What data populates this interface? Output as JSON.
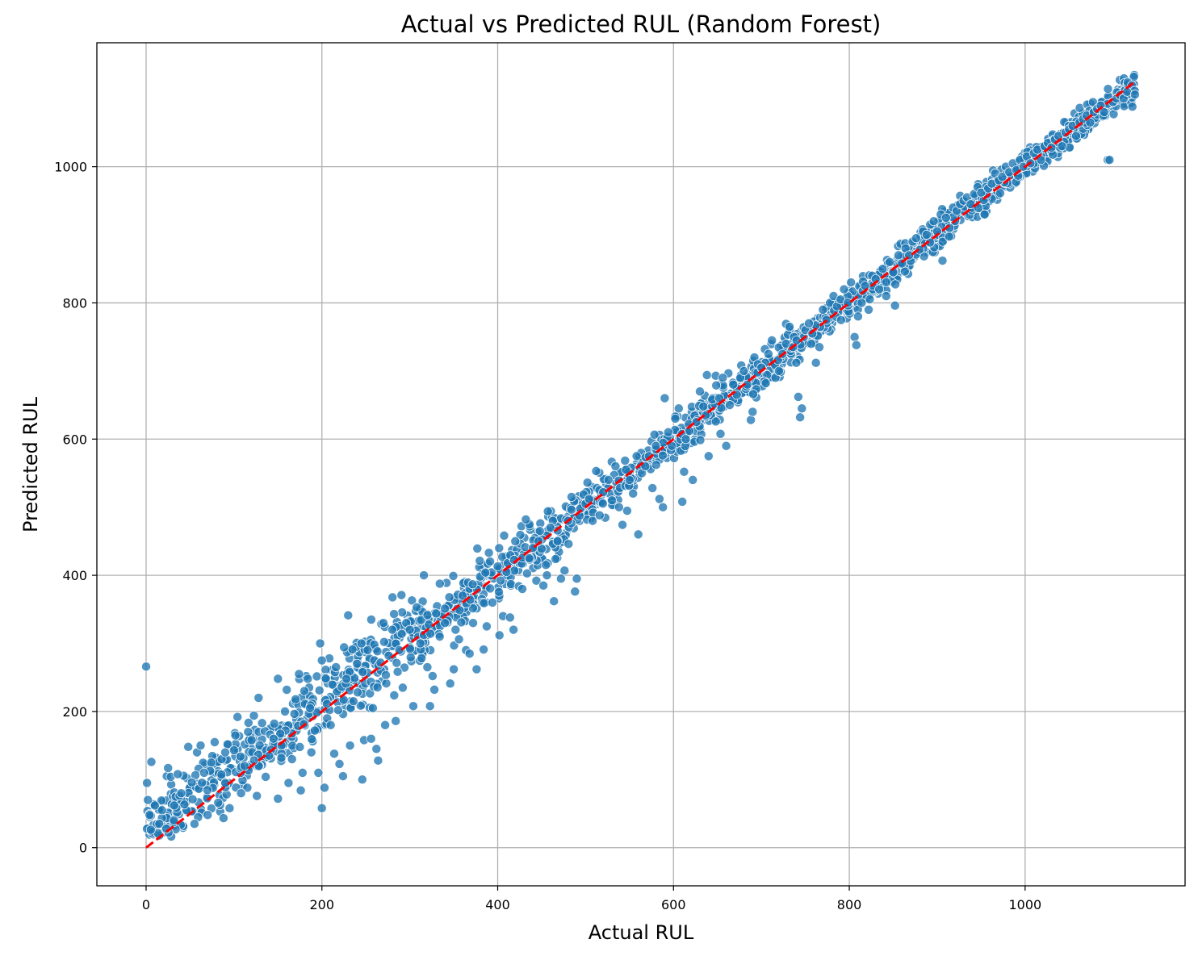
{
  "chart_data": {
    "type": "scatter",
    "title": "Actual vs Predicted RUL (Random Forest)",
    "xlabel": "Actual RUL",
    "ylabel": "Predicted RUL",
    "xlim": [
      -56,
      1182
    ],
    "ylim": [
      -56,
      1182
    ],
    "xticks": [
      0,
      200,
      400,
      600,
      800,
      1000
    ],
    "yticks": [
      0,
      200,
      400,
      600,
      800,
      1000
    ],
    "xtick_labels": [
      "0",
      "200",
      "400",
      "600",
      "800",
      "1000"
    ],
    "ytick_labels": [
      "0",
      "200",
      "400",
      "600",
      "800",
      "1000"
    ],
    "grid": true,
    "point_color": "#1f77b4",
    "point_edge_color": "#ffffff",
    "reference_line": {
      "from": [
        0,
        0
      ],
      "to": [
        1125,
        1125
      ],
      "color": "#ff0000",
      "style": "dashed"
    },
    "points_count": 2000,
    "points": [
      [
        0,
        266
      ],
      [
        1,
        95
      ],
      [
        2,
        70
      ],
      [
        4,
        48
      ],
      [
        6,
        126
      ],
      [
        10,
        62
      ],
      [
        15,
        35
      ],
      [
        18,
        55
      ],
      [
        23,
        28
      ],
      [
        25,
        117
      ],
      [
        28,
        104
      ],
      [
        32,
        62
      ],
      [
        36,
        108
      ],
      [
        40,
        80
      ],
      [
        48,
        148
      ],
      [
        52,
        96
      ],
      [
        55,
        35
      ],
      [
        58,
        140
      ],
      [
        62,
        150
      ],
      [
        66,
        110
      ],
      [
        70,
        48
      ],
      [
        74,
        125
      ],
      [
        78,
        155
      ],
      [
        82,
        66
      ],
      [
        86,
        130
      ],
      [
        90,
        140
      ],
      [
        95,
        58
      ],
      [
        100,
        143
      ],
      [
        104,
        192
      ],
      [
        108,
        80
      ],
      [
        112,
        120
      ],
      [
        116,
        170
      ],
      [
        120,
        158
      ],
      [
        126,
        76
      ],
      [
        128,
        220
      ],
      [
        132,
        183
      ],
      [
        136,
        104
      ],
      [
        140,
        135
      ],
      [
        145,
        160
      ],
      [
        150,
        248
      ],
      [
        150,
        72
      ],
      [
        154,
        150
      ],
      [
        158,
        200
      ],
      [
        162,
        95
      ],
      [
        166,
        130
      ],
      [
        170,
        218
      ],
      [
        174,
        255
      ],
      [
        176,
        84
      ],
      [
        178,
        110
      ],
      [
        180,
        230
      ],
      [
        184,
        248
      ],
      [
        188,
        140
      ],
      [
        192,
        172
      ],
      [
        196,
        110
      ],
      [
        198,
        300
      ],
      [
        200,
        275
      ],
      [
        200,
        58
      ],
      [
        203,
        88
      ],
      [
        206,
        190
      ],
      [
        210,
        180
      ],
      [
        214,
        138
      ],
      [
        216,
        265
      ],
      [
        220,
        123
      ],
      [
        224,
        105
      ],
      [
        228,
        248
      ],
      [
        232,
        150
      ],
      [
        236,
        215
      ],
      [
        240,
        270
      ],
      [
        245,
        300
      ],
      [
        246,
        100
      ],
      [
        248,
        158
      ],
      [
        252,
        290
      ],
      [
        256,
        160
      ],
      [
        258,
        205
      ],
      [
        262,
        145
      ],
      [
        264,
        128
      ],
      [
        270,
        330
      ],
      [
        272,
        180
      ],
      [
        276,
        282
      ],
      [
        280,
        320
      ],
      [
        284,
        186
      ],
      [
        288,
        290
      ],
      [
        292,
        235
      ],
      [
        296,
        330
      ],
      [
        300,
        320
      ],
      [
        304,
        208
      ],
      [
        308,
        353
      ],
      [
        312,
        300
      ],
      [
        316,
        400
      ],
      [
        320,
        265
      ],
      [
        323,
        208
      ],
      [
        326,
        252
      ],
      [
        328,
        232
      ],
      [
        330,
        344
      ],
      [
        334,
        310
      ],
      [
        340,
        330
      ],
      [
        346,
        241
      ],
      [
        350,
        262
      ],
      [
        352,
        320
      ],
      [
        356,
        306
      ],
      [
        360,
        370
      ],
      [
        364,
        290
      ],
      [
        368,
        285
      ],
      [
        372,
        330
      ],
      [
        376,
        262
      ],
      [
        380,
        398
      ],
      [
        384,
        291
      ],
      [
        386,
        404
      ],
      [
        390,
        433
      ],
      [
        394,
        360
      ],
      [
        400,
        413
      ],
      [
        402,
        312
      ],
      [
        406,
        340
      ],
      [
        410,
        405
      ],
      [
        414,
        338
      ],
      [
        418,
        320
      ],
      [
        420,
        450
      ],
      [
        424,
        384
      ],
      [
        428,
        380
      ],
      [
        432,
        482
      ],
      [
        436,
        425
      ],
      [
        440,
        440
      ],
      [
        444,
        392
      ],
      [
        448,
        465
      ],
      [
        452,
        385
      ],
      [
        456,
        400
      ],
      [
        460,
        470
      ],
      [
        464,
        362
      ],
      [
        468,
        450
      ],
      [
        472,
        395
      ],
      [
        476,
        407
      ],
      [
        480,
        480
      ],
      [
        484,
        515
      ],
      [
        488,
        376
      ],
      [
        490,
        395
      ],
      [
        494,
        498
      ],
      [
        500,
        505
      ],
      [
        504,
        512
      ],
      [
        508,
        480
      ],
      [
        512,
        553
      ],
      [
        516,
        488
      ],
      [
        520,
        522
      ],
      [
        526,
        540
      ],
      [
        530,
        510
      ],
      [
        534,
        560
      ],
      [
        538,
        500
      ],
      [
        542,
        474
      ],
      [
        546,
        555
      ],
      [
        550,
        540
      ],
      [
        554,
        520
      ],
      [
        558,
        575
      ],
      [
        560,
        460
      ],
      [
        564,
        550
      ],
      [
        568,
        560
      ],
      [
        572,
        575
      ],
      [
        576,
        528
      ],
      [
        580,
        590
      ],
      [
        584,
        512
      ],
      [
        588,
        500
      ],
      [
        590,
        660
      ],
      [
        594,
        610
      ],
      [
        598,
        590
      ],
      [
        602,
        630
      ],
      [
        606,
        645
      ],
      [
        610,
        508
      ],
      [
        612,
        552
      ],
      [
        614,
        600
      ],
      [
        618,
        612
      ],
      [
        622,
        540
      ],
      [
        626,
        625
      ],
      [
        630,
        670
      ],
      [
        634,
        648
      ],
      [
        638,
        694
      ],
      [
        640,
        575
      ],
      [
        644,
        658
      ],
      [
        648,
        693
      ],
      [
        652,
        660
      ],
      [
        656,
        690
      ],
      [
        660,
        590
      ],
      [
        664,
        650
      ],
      [
        668,
        680
      ],
      [
        672,
        665
      ],
      [
        676,
        690
      ],
      [
        680,
        700
      ],
      [
        684,
        680
      ],
      [
        688,
        628
      ],
      [
        690,
        640
      ],
      [
        692,
        720
      ],
      [
        696,
        710
      ],
      [
        700,
        705
      ],
      [
        704,
        732
      ],
      [
        708,
        725
      ],
      [
        712,
        745
      ],
      [
        716,
        690
      ],
      [
        720,
        700
      ],
      [
        724,
        725
      ],
      [
        728,
        740
      ],
      [
        732,
        765
      ],
      [
        736,
        735
      ],
      [
        740,
        745
      ],
      [
        742,
        662
      ],
      [
        744,
        632
      ],
      [
        746,
        645
      ],
      [
        750,
        760
      ],
      [
        754,
        770
      ],
      [
        758,
        755
      ],
      [
        762,
        712
      ],
      [
        766,
        735
      ],
      [
        770,
        790
      ],
      [
        774,
        775
      ],
      [
        778,
        800
      ],
      [
        782,
        810
      ],
      [
        786,
        795
      ],
      [
        790,
        805
      ],
      [
        794,
        820
      ],
      [
        798,
        800
      ],
      [
        802,
        830
      ],
      [
        806,
        750
      ],
      [
        808,
        738
      ],
      [
        810,
        780
      ],
      [
        814,
        800
      ],
      [
        818,
        825
      ],
      [
        822,
        790
      ],
      [
        826,
        840
      ],
      [
        830,
        835
      ],
      [
        834,
        820
      ],
      [
        838,
        850
      ],
      [
        842,
        810
      ],
      [
        846,
        860
      ],
      [
        850,
        845
      ],
      [
        852,
        796
      ],
      [
        856,
        870
      ],
      [
        860,
        858
      ],
      [
        864,
        880
      ],
      [
        868,
        870
      ],
      [
        872,
        890
      ],
      [
        876,
        895
      ],
      [
        880,
        878
      ],
      [
        884,
        905
      ],
      [
        888,
        900
      ],
      [
        892,
        915
      ],
      [
        896,
        920
      ],
      [
        900,
        905
      ],
      [
        904,
        930
      ],
      [
        906,
        862
      ],
      [
        910,
        925
      ],
      [
        914,
        910
      ],
      [
        918,
        940
      ],
      [
        922,
        935
      ],
      [
        926,
        945
      ],
      [
        930,
        950
      ],
      [
        934,
        955
      ],
      [
        938,
        945
      ],
      [
        942,
        960
      ],
      [
        946,
        970
      ],
      [
        950,
        962
      ],
      [
        954,
        930
      ],
      [
        958,
        968
      ],
      [
        962,
        975
      ],
      [
        966,
        990
      ],
      [
        970,
        980
      ],
      [
        974,
        985
      ],
      [
        978,
        1000
      ],
      [
        982,
        992
      ],
      [
        986,
        1005
      ],
      [
        990,
        995
      ],
      [
        994,
        1010
      ],
      [
        998,
        1000
      ],
      [
        1002,
        1015
      ],
      [
        1006,
        1005
      ],
      [
        1010,
        1020
      ],
      [
        1014,
        1025
      ],
      [
        1018,
        1010
      ],
      [
        1022,
        1030
      ],
      [
        1026,
        1035
      ],
      [
        1030,
        1028
      ],
      [
        1034,
        1040
      ],
      [
        1038,
        1045
      ],
      [
        1042,
        1030
      ],
      [
        1046,
        1050
      ],
      [
        1050,
        1055
      ],
      [
        1054,
        1060
      ],
      [
        1058,
        1045
      ],
      [
        1062,
        1065
      ],
      [
        1066,
        1070
      ],
      [
        1070,
        1075
      ],
      [
        1074,
        1065
      ],
      [
        1078,
        1080
      ],
      [
        1082,
        1085
      ],
      [
        1086,
        1090
      ],
      [
        1090,
        1080
      ],
      [
        1094,
        1010
      ],
      [
        1096,
        1010
      ],
      [
        1100,
        1095
      ],
      [
        1104,
        1100
      ],
      [
        1108,
        1105
      ],
      [
        1112,
        1100
      ],
      [
        1116,
        1110
      ],
      [
        1122,
        1088
      ],
      [
        1125,
        1106
      ]
    ]
  }
}
